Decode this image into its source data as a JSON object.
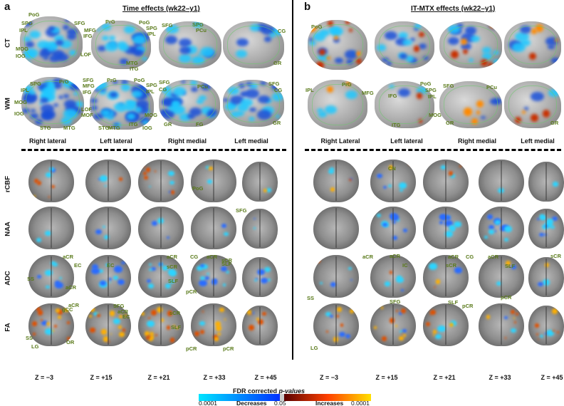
{
  "panels": [
    {
      "letter": "a",
      "title": "Time effects (wk22–y1)"
    },
    {
      "letter": "b",
      "title": "IT-MTX effects (wk22–y1)"
    }
  ],
  "surface_rows": [
    "CT",
    "WM"
  ],
  "slice_rows": [
    "rCBF",
    "NAA",
    "ADC",
    "FA"
  ],
  "views_a": [
    "Right lateral",
    "Left lateral",
    "Right medial",
    "Left medial"
  ],
  "views_b": [
    "Right Lateral",
    "Left lateral",
    "Right medial",
    "Left medial"
  ],
  "z_labels": [
    "Z = −3",
    "Z = +15",
    "Z = +21",
    "Z = +33",
    "Z = +45"
  ],
  "annotations_a": {
    "ct": [
      "PoG",
      "SPG",
      "SFG",
      "IPL",
      "MFG",
      "IFG",
      "MOG",
      "IOG",
      "LOF",
      "PrG",
      "PoG",
      "SPG",
      "IPL",
      "MTG",
      "ITG",
      "SFG",
      "SPG",
      "PCu",
      "CG",
      "GR"
    ],
    "wm": [
      "SPG",
      "PrG",
      "SFG",
      "IPL",
      "MFG",
      "IFG",
      "MOG",
      "IOG",
      "STG",
      "MTG",
      "LOF",
      "MOF",
      "PrG",
      "PoG",
      "SPG",
      "IPL",
      "STG",
      "MTG",
      "ITG",
      "IOG",
      "MOG",
      "SFG",
      "CG",
      "PCu",
      "GR",
      "FG",
      "SFG",
      "CG",
      "GR"
    ],
    "slices": [
      "PoG",
      "SFG",
      "aCR",
      "EC",
      "SS",
      "aCR",
      "EC",
      "aCR",
      "sCR",
      "SLF",
      "CG",
      "aCR",
      "SLF",
      "pCR",
      "sCR",
      "aCR",
      "gCC",
      "SFG",
      "aCR",
      "EC",
      "sCR",
      "SLF",
      "SS",
      "LG",
      "OR",
      "pCR",
      "pCR"
    ]
  },
  "annotations_b": {
    "ct": [
      "PoG"
    ],
    "wm": [
      "PrG",
      "IPL",
      "MFG",
      "IFG",
      "PoG",
      "SPG",
      "IPL",
      "ITG",
      "MOG",
      "SFG",
      "PCu",
      "GR",
      "GR"
    ],
    "slices": [
      "CN",
      "aCR",
      "SS",
      "aCR",
      "IC",
      "aCR",
      "sCR",
      "SLF",
      "CG",
      "aCR",
      "SLF",
      "pCR",
      "pCR",
      "sCR",
      "SFG",
      "LG"
    ]
  },
  "colorbar": {
    "title_prefix": "FDR corrected",
    "title_italic": "p-values",
    "left_value": "0.0001",
    "center_value": "0.05",
    "right_value": "0.0001",
    "left_caption": "Decreases",
    "right_caption": "Increases",
    "colors": {
      "decrease_start": "#00e5ff",
      "decrease_end": "#0030ff",
      "increase_start": "#5a0000",
      "increase_mid": "#ff4000",
      "increase_end": "#ffe000"
    }
  }
}
